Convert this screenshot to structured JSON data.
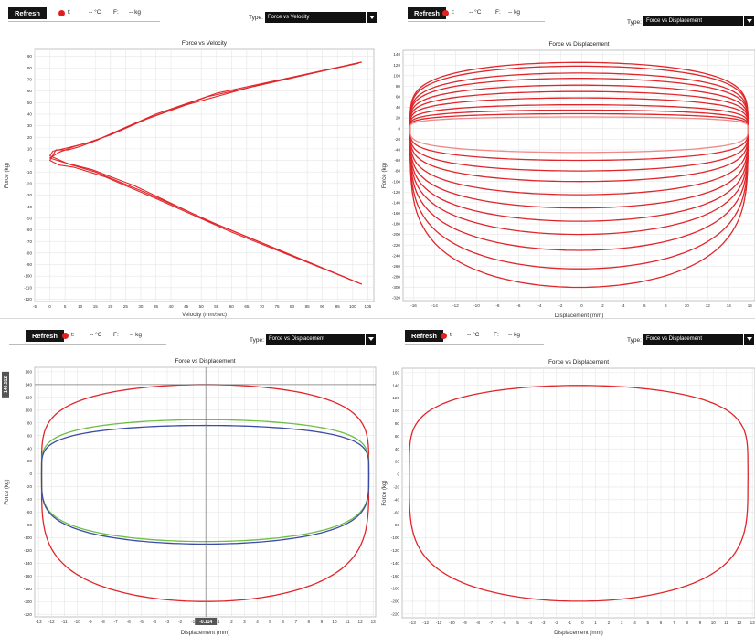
{
  "panels": [
    {
      "toolbar": {
        "refresh_label": "Refresh",
        "t_label": "t:",
        "temp_text": "-- °C",
        "force_label": "F:",
        "force_text": "-- kg",
        "type_label": "Type:",
        "type_value": "Force vs Velocity"
      }
    },
    {
      "toolbar": {
        "refresh_label": "Refresh",
        "t_label": "t:",
        "temp_text": "-- °C",
        "force_label": "F:",
        "force_text": "-- kg",
        "type_label": "Type:",
        "type_value": "Force vs Displacement"
      }
    },
    {
      "toolbar": {
        "refresh_label": "Refresh",
        "t_label": "t:",
        "temp_text": "-- °C",
        "force_label": "F:",
        "force_text": "-- kg",
        "type_label": "Type:",
        "type_value": "Force vs Displacement"
      },
      "cursor": {
        "x_readout": "-0.114",
        "y_readout": "140.512"
      }
    },
    {
      "toolbar": {
        "refresh_label": "Refresh",
        "t_label": "t:",
        "temp_text": "-- °C",
        "force_label": "F:",
        "force_text": "-- kg",
        "type_label": "Type:",
        "type_value": "Force vs Displacement"
      }
    }
  ],
  "colors": {
    "curve_red": "#e0262a",
    "curve_light_red": "#f08a8a",
    "curve_green": "#6fbe45",
    "curve_blue": "#3b4ca6",
    "grid": "#e6e6e6",
    "status_dot": "#e02020"
  },
  "chart_data": [
    {
      "type": "line",
      "title": "Force vs Velocity",
      "xlabel": "Velocity (mm/sec)",
      "ylabel": "Force (kg)",
      "xlim": [
        -5,
        107
      ],
      "ylim": [
        -122,
        96
      ],
      "xticks": [
        -5,
        0,
        5,
        10,
        15,
        20,
        25,
        30,
        35,
        40,
        45,
        50,
        55,
        60,
        65,
        70,
        75,
        80,
        85,
        90,
        95,
        100,
        105
      ],
      "yticks": [
        90,
        80,
        70,
        60,
        50,
        40,
        30,
        20,
        10,
        0,
        -10,
        -20,
        -30,
        -40,
        -50,
        -60,
        -70,
        -80,
        -90,
        -100,
        -110,
        -120
      ],
      "grid": true,
      "series": [
        {
          "color": "#e0262a",
          "x": [
            103,
            80,
            55,
            35,
            22,
            16,
            10,
            6,
            2,
            0,
            3,
            8,
            18,
            35,
            60,
            85,
            103
          ],
          "y": [
            85,
            72,
            58,
            40,
            25,
            18,
            12,
            9,
            9,
            0,
            -4,
            -6,
            -14,
            -33,
            -62,
            -88,
            -107
          ]
        },
        {
          "color": "#e0262a",
          "x": [
            103,
            78,
            52,
            33,
            20,
            12,
            6,
            1,
            0,
            6,
            15,
            30,
            55,
            80,
            103
          ],
          "y": [
            85,
            70,
            55,
            37,
            22,
            15,
            11,
            8,
            4,
            -3,
            -10,
            -26,
            -55,
            -82,
            -107
          ]
        },
        {
          "color": "#e0262a",
          "x": [
            102,
            70,
            45,
            28,
            15,
            8,
            3,
            0,
            5,
            14,
            28,
            52,
            78,
            102
          ],
          "y": [
            84,
            66,
            48,
            32,
            17,
            12,
            7,
            2,
            -2,
            -8,
            -22,
            -52,
            -80,
            -106
          ]
        }
      ]
    },
    {
      "type": "line",
      "title": "Force vs Displacement",
      "xlabel": "Displacement (mm)",
      "ylabel": "Force (kg)",
      "xlim": [
        -17,
        16.5
      ],
      "ylim": [
        -325,
        148
      ],
      "xticks": [
        -16,
        -14,
        -12,
        -10,
        -8,
        -6,
        -4,
        -2,
        0,
        2,
        4,
        6,
        8,
        10,
        12,
        14,
        16
      ],
      "yticks": [
        140,
        120,
        100,
        80,
        60,
        40,
        20,
        0,
        -20,
        -40,
        -60,
        -80,
        -100,
        -120,
        -140,
        -160,
        -180,
        -200,
        -220,
        -240,
        -260,
        -280,
        -300,
        -320
      ],
      "grid": true,
      "loops": [
        {
          "top": 125,
          "bottom": -300,
          "color": "#e0262a"
        },
        {
          "top": 118,
          "bottom": -265,
          "color": "#e0262a"
        },
        {
          "top": 105,
          "bottom": -230,
          "color": "#e0262a"
        },
        {
          "top": 95,
          "bottom": -200,
          "color": "#e0262a"
        },
        {
          "top": 82,
          "bottom": -175,
          "color": "#e0262a"
        },
        {
          "top": 70,
          "bottom": -150,
          "color": "#e0262a"
        },
        {
          "top": 58,
          "bottom": -125,
          "color": "#e0262a"
        },
        {
          "top": 45,
          "bottom": -100,
          "color": "#e0262a"
        },
        {
          "top": 35,
          "bottom": -80,
          "color": "#e0262a"
        },
        {
          "top": 28,
          "bottom": -60,
          "color": "#e0262a"
        },
        {
          "top": 22,
          "bottom": -45,
          "color": "#f08a8a"
        }
      ]
    },
    {
      "type": "line",
      "title": "Force vs Displacement",
      "xlabel": "Displacement (mm)",
      "ylabel": "Force (kg)",
      "xlim": [
        -13.3,
        13.2
      ],
      "ylim": [
        -224,
        167
      ],
      "xticks": [
        -13,
        -12,
        -11,
        -10,
        -9,
        -8,
        -7,
        -6,
        -5,
        -4,
        -3,
        -2,
        -1,
        0,
        1,
        2,
        3,
        4,
        5,
        6,
        7,
        8,
        9,
        10,
        11,
        12,
        13
      ],
      "yticks": [
        160,
        140,
        120,
        100,
        80,
        60,
        40,
        20,
        0,
        -20,
        -40,
        -60,
        -80,
        -100,
        -120,
        -140,
        -160,
        -180,
        -200,
        -220
      ],
      "grid": true,
      "loops": [
        {
          "top": 140,
          "bottom": -200,
          "color": "#e0262a"
        },
        {
          "top": 85,
          "bottom": -106,
          "color": "#6fbe45"
        },
        {
          "top": 76,
          "bottom": -110,
          "color": "#3b4ca6"
        }
      ]
    },
    {
      "type": "line",
      "title": "Force vs Displacement",
      "xlabel": "Displacement (mm)",
      "ylabel": "Force (kg)",
      "xlim": [
        -13.8,
        13.2
      ],
      "ylim": [
        -226,
        167
      ],
      "xticks": [
        -13,
        -12,
        -11,
        -10,
        -9,
        -8,
        -7,
        -6,
        -5,
        -4,
        -3,
        -2,
        -1,
        0,
        1,
        2,
        3,
        4,
        5,
        6,
        7,
        8,
        9,
        10,
        11,
        12,
        13
      ],
      "yticks": [
        160,
        140,
        120,
        100,
        80,
        60,
        40,
        20,
        0,
        -20,
        -40,
        -60,
        -80,
        -100,
        -120,
        -140,
        -160,
        -180,
        -200,
        -220
      ],
      "grid": true,
      "loops": [
        {
          "top": 140,
          "bottom": -200,
          "color": "#e0262a"
        }
      ]
    }
  ]
}
